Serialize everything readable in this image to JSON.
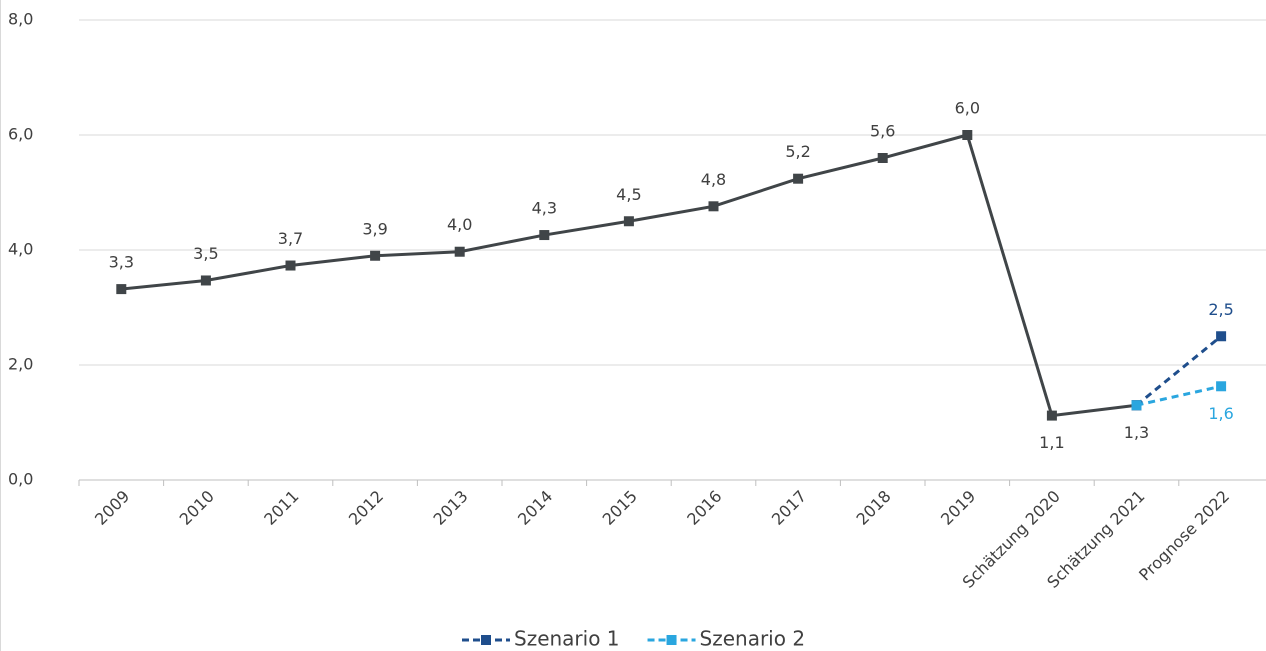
{
  "chart_data": {
    "type": "line",
    "categories": [
      "2009",
      "2010",
      "2011",
      "2012",
      "2013",
      "2014",
      "2015",
      "2016",
      "2017",
      "2018",
      "2019",
      "Schätzung 2020",
      "Schätzung 2021",
      "Prognose 2022"
    ],
    "series": [
      {
        "color": "#404548",
        "dashed": false,
        "values": [
          3.32,
          3.47,
          3.73,
          3.9,
          3.97,
          4.26,
          4.5,
          4.76,
          5.24,
          5.6,
          6.0,
          1.12,
          1.3,
          null
        ],
        "value_labels": [
          "3,3",
          "3,5",
          "3,7",
          "3,9",
          "4,0",
          "4,3",
          "4,5",
          "4,8",
          "5,2",
          "5,6",
          "6,0",
          "1,1",
          "1,3",
          null
        ]
      },
      {
        "name": "Szenario 1",
        "color": "#1f4e8c",
        "dashed": true,
        "values": [
          null,
          null,
          null,
          null,
          null,
          null,
          null,
          null,
          null,
          null,
          null,
          null,
          1.3,
          2.5
        ],
        "value_labels": [
          null,
          null,
          null,
          null,
          null,
          null,
          null,
          null,
          null,
          null,
          null,
          null,
          null,
          "2,5"
        ]
      },
      {
        "name": "Szenario 2",
        "color": "#2aa6df",
        "dashed": true,
        "values": [
          null,
          null,
          null,
          null,
          null,
          null,
          null,
          null,
          null,
          null,
          null,
          null,
          1.3,
          1.63
        ],
        "value_labels": [
          null,
          null,
          null,
          null,
          null,
          null,
          null,
          null,
          null,
          null,
          null,
          null,
          null,
          "1,6"
        ]
      }
    ],
    "ylim": [
      0,
      8
    ],
    "yticks": [
      {
        "value": 0,
        "label": "0,0"
      },
      {
        "value": 2,
        "label": "2,0"
      },
      {
        "value": 4,
        "label": "4,0"
      },
      {
        "value": 6,
        "label": "6,0"
      },
      {
        "value": 8,
        "label": "8,0"
      }
    ],
    "grid": true,
    "legend": "bottom"
  }
}
